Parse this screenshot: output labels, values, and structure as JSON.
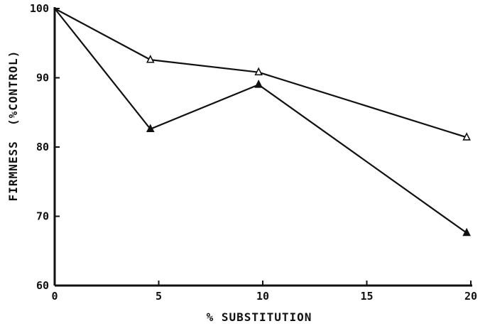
{
  "chart_data": {
    "type": "line",
    "title": "",
    "xlabel": "% SUBSTITUTION",
    "ylabel": "FIRMNESS  (%CONTROL)",
    "xlim": [
      0,
      20
    ],
    "ylim": [
      60,
      100
    ],
    "xticks": [
      0,
      5,
      10,
      15,
      20
    ],
    "xtick_labels": [
      "0",
      "5",
      "10",
      "15",
      "20"
    ],
    "yticks": [
      60,
      70,
      80,
      90,
      100
    ],
    "ytick_labels": [
      "60",
      "70",
      "80",
      "90",
      "100"
    ],
    "grid": false,
    "series": [
      {
        "marker": "open-triangle",
        "x": [
          0,
          4.6,
          9.8,
          19.8
        ],
        "y": [
          100,
          92.6,
          90.8,
          81.4
        ]
      },
      {
        "marker": "filled-triangle",
        "x": [
          0,
          4.6,
          9.8,
          19.8
        ],
        "y": [
          100,
          82.6,
          89.0,
          67.6
        ]
      }
    ],
    "colors": {
      "ink": "#111111",
      "background": "#ffffff"
    }
  }
}
